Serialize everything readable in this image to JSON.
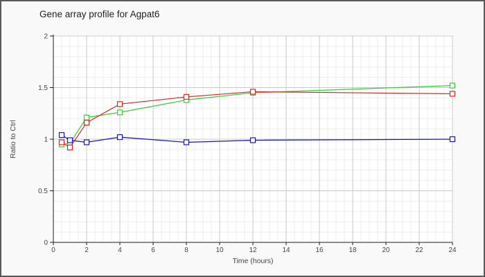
{
  "colors": {
    "background": "#f9f9f9",
    "frame_border": "#5a5a5a",
    "plot_background": "#ffffff",
    "plot_border": "#cccccc",
    "grid_minor": "#ededed",
    "grid_major": "#c8c8c8",
    "axis": "#1a1a1a",
    "tick_text": "#444444",
    "title_text": "#222222"
  },
  "chart_data": {
    "type": "line",
    "title": "Gene array profile for Agpat6",
    "xlabel": "Time (hours)",
    "ylabel": "Ratio to Ctrl",
    "x": [
      0.5,
      1,
      2,
      4,
      8,
      12,
      24
    ],
    "series": [
      {
        "name": "green",
        "color": "#33cc33",
        "marker": "open-square",
        "values": [
          0.95,
          0.96,
          1.21,
          1.26,
          1.38,
          1.45,
          1.52
        ]
      },
      {
        "name": "red",
        "color": "#dd2222",
        "marker": "open-square",
        "values": [
          0.97,
          0.92,
          1.16,
          1.34,
          1.41,
          1.46,
          1.44
        ]
      },
      {
        "name": "blue",
        "color": "#1111cc",
        "marker": "open-square",
        "values": [
          1.04,
          0.99,
          0.97,
          1.02,
          0.97,
          0.99,
          1.0
        ]
      }
    ],
    "xlim": [
      0,
      24
    ],
    "ylim": [
      0,
      2
    ],
    "x_ticks": [
      0,
      2,
      4,
      6,
      8,
      10,
      12,
      14,
      16,
      18,
      20,
      22,
      24
    ],
    "y_ticks": [
      0,
      0.5,
      1,
      1.5,
      2
    ],
    "x_minor_step": 0.5,
    "y_minor_step": 0.1,
    "grid": true,
    "legend": "none"
  }
}
